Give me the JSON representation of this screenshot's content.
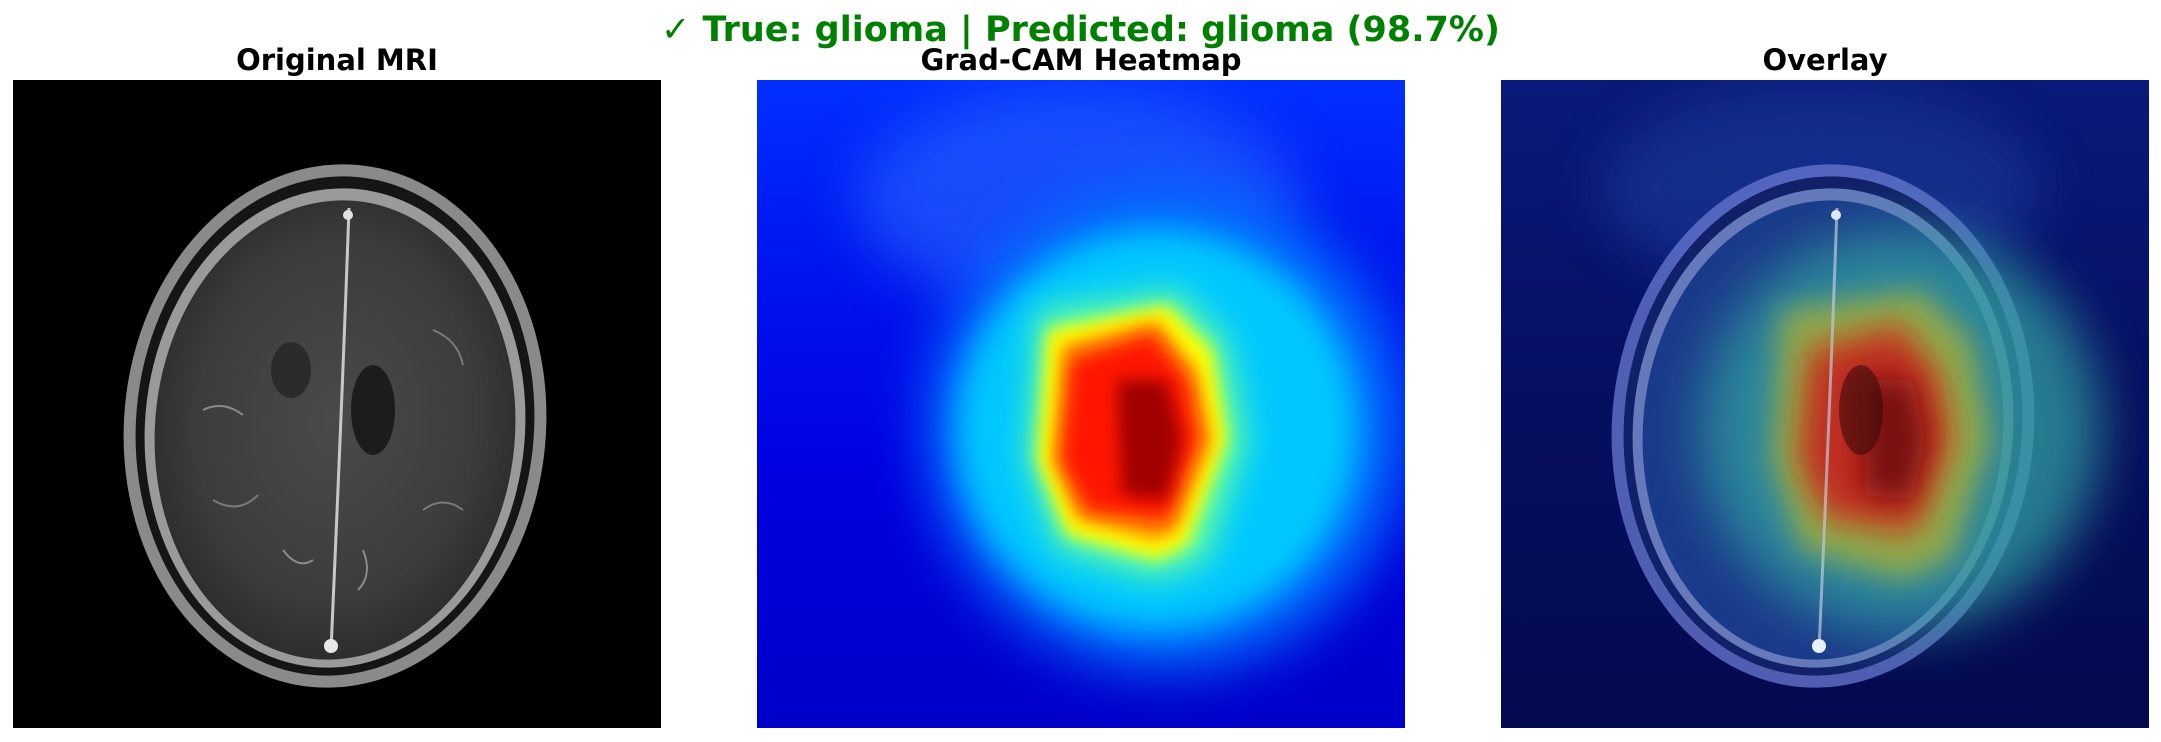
{
  "figure": {
    "title_mark": "✓",
    "title_text": "True: glioma | Predicted: glioma (98.7%)",
    "title_color": "#008000"
  },
  "panels": [
    {
      "title": "Original MRI"
    },
    {
      "title": "Grad-CAM Heatmap"
    },
    {
      "title": "Overlay"
    }
  ],
  "colormap": "jet",
  "heatmap_colors": {
    "peak": "#8b0000",
    "high": "#ff2000",
    "mid_high": "#ffff00",
    "mid": "#00ffff",
    "low": "#0060ff",
    "background": "#0000d8"
  }
}
